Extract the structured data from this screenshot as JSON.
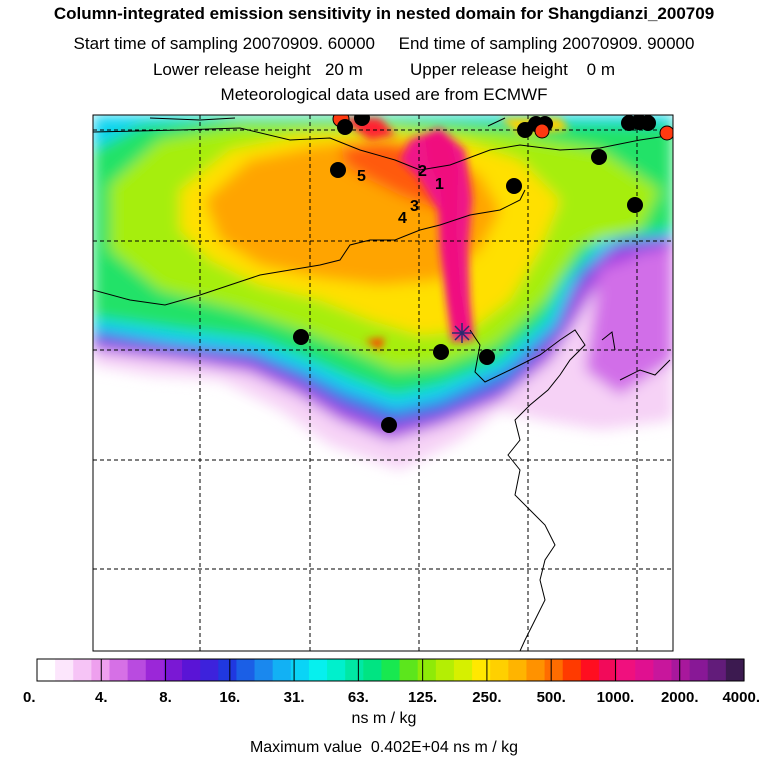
{
  "header": {
    "title": "Column-integrated emission sensitivity in nested domain for Shangdianzi_200709",
    "sampling": "Start time of sampling 20070909. 60000     End time of sampling 20070909. 90000",
    "release": "Lower release height   20 m          Upper release height    0 m",
    "met": "Meteorological data used are from ECMWF"
  },
  "map": {
    "receptor": "Shangdianzi",
    "trajectory_labels": [
      "1",
      "2",
      "3",
      "4",
      "5"
    ]
  },
  "colorbar": {
    "tick_labels": [
      "0.",
      "4.",
      "8.",
      "16.",
      "31.",
      "63.",
      "125.",
      "250.",
      "500.",
      "1000.",
      "2000.",
      "4000."
    ],
    "colors": [
      "#ffffff",
      "#fce6fc",
      "#f6c4f6",
      "#eea0ee",
      "#d670e6",
      "#b94be0",
      "#9b27d8",
      "#7a18d4",
      "#5a14d6",
      "#3d22dc",
      "#2038e0",
      "#1b5fe6",
      "#1a88ee",
      "#12b1f4",
      "#0ad4f6",
      "#06f0ee",
      "#00f0cc",
      "#00e8a4",
      "#00e482",
      "#18e850",
      "#5ce61c",
      "#8eea08",
      "#b4ee04",
      "#d6f000",
      "#ffe800",
      "#ffd000",
      "#ffb400",
      "#ff9200",
      "#ff6c00",
      "#ff3a00",
      "#ff0e20",
      "#f20a5a",
      "#f0107e",
      "#e01090",
      "#c8169c",
      "#a8189c",
      "#881896",
      "#621c7a",
      "#3c1a50"
    ],
    "units": "ns m / kg",
    "max_value": "Maximum value  0.402E+04 ns m / kg"
  }
}
